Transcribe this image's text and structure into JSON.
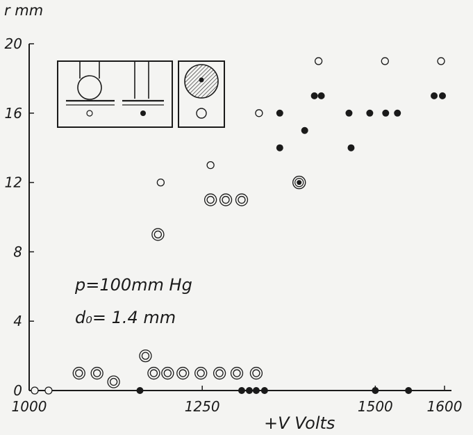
{
  "chart_data": {
    "type": "scatter",
    "title": "",
    "xlabel": "+V Volts",
    "ylabel": "r mm",
    "xlim": [
      1000,
      1600
    ],
    "ylim": [
      0,
      20
    ],
    "xticks": [
      1000,
      1250,
      1500,
      1600
    ],
    "xtick_labels": [
      "1000",
      "1250",
      "1500",
      "1600"
    ],
    "yticks": [
      0,
      4,
      8,
      12,
      16,
      20
    ],
    "ytick_labels": [
      "0",
      "4",
      "8",
      "12",
      "16",
      "20"
    ],
    "grid": false,
    "annotations": [
      "p=100mm Hg",
      "d₀= 1.4 mm"
    ],
    "marker_styles": [
      "open circle",
      "double ring",
      "filled dot",
      "ringed filled dot"
    ],
    "inset": {
      "description": "schematic of electrode tip and discharge spot types",
      "panels": 2
    },
    "series": [
      {
        "marker": "open",
        "points": [
          [
            1008,
            0
          ],
          [
            1028,
            0
          ],
          [
            1190,
            12
          ],
          [
            1262,
            13
          ],
          [
            1332,
            16
          ],
          [
            1418,
            19
          ],
          [
            1514,
            19
          ],
          [
            1595,
            19
          ]
        ]
      },
      {
        "marker": "double",
        "points": [
          [
            1072,
            1
          ],
          [
            1098,
            1
          ],
          [
            1122,
            0.5
          ],
          [
            1168,
            2
          ],
          [
            1180,
            1
          ],
          [
            1200,
            1
          ],
          [
            1222,
            1
          ],
          [
            1248,
            1
          ],
          [
            1275,
            1
          ],
          [
            1300,
            1
          ],
          [
            1328,
            1
          ],
          [
            1186,
            9
          ],
          [
            1262,
            11
          ],
          [
            1284,
            11
          ],
          [
            1307,
            11
          ]
        ]
      },
      {
        "marker": "filled",
        "points": [
          [
            1160,
            0
          ],
          [
            1307,
            0
          ],
          [
            1318,
            0
          ],
          [
            1328,
            0
          ],
          [
            1340,
            0
          ],
          [
            1362,
            14
          ],
          [
            1362,
            16
          ],
          [
            1398,
            15
          ],
          [
            1412,
            17
          ],
          [
            1422,
            17
          ],
          [
            1462,
            16
          ],
          [
            1465,
            14
          ],
          [
            1492,
            16
          ],
          [
            1500,
            0
          ],
          [
            1515,
            16
          ],
          [
            1532,
            16
          ],
          [
            1548,
            0
          ],
          [
            1585,
            17
          ],
          [
            1597,
            17
          ]
        ]
      },
      {
        "marker": "ringed-filled",
        "points": [
          [
            1390,
            12
          ]
        ]
      }
    ]
  }
}
